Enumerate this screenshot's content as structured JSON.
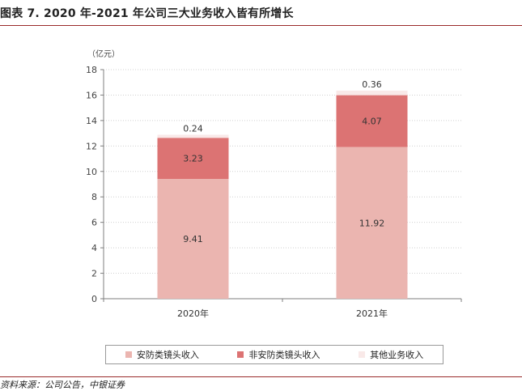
{
  "header": {
    "title": "图表 7. 2020 年-2021 年公司三大业务收入皆有所增长"
  },
  "footer": {
    "source": "资料来源：公司公告，中银证券"
  },
  "chart_data": {
    "type": "bar",
    "stacked": true,
    "unit_label": "（亿元）",
    "categories": [
      "2020年",
      "2021年"
    ],
    "series": [
      {
        "name": "安防类镜头收入",
        "values": [
          9.41,
          11.92
        ],
        "color": "#ebb5b0"
      },
      {
        "name": "非安防类镜头收入",
        "values": [
          3.23,
          4.07
        ],
        "color": "#dc7373"
      },
      {
        "name": "其他业务收入",
        "values": [
          0.24,
          0.36
        ],
        "color": "#f9e9e8"
      }
    ],
    "data_labels": [
      [
        "9.41",
        "11.92"
      ],
      [
        "3.23",
        "4.07"
      ],
      [
        "0.24",
        "0.36"
      ]
    ],
    "ylim": [
      0,
      18
    ],
    "yticks": [
      0,
      2,
      4,
      6,
      8,
      10,
      12,
      14,
      16,
      18
    ],
    "ytick_labels": [
      "0",
      "2",
      "4",
      "6",
      "8",
      "10",
      "12",
      "14",
      "16",
      "18"
    ],
    "grid": true,
    "legend_position": "bottom"
  }
}
